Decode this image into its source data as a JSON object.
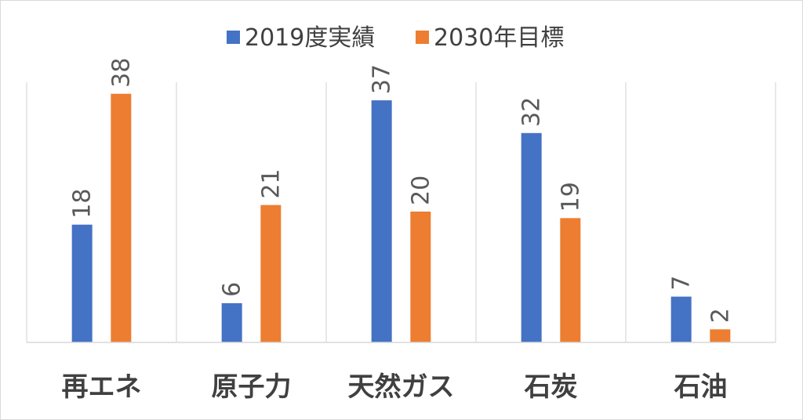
{
  "chart_data": {
    "type": "bar",
    "categories": [
      "再エネ",
      "原子力",
      "天然ガス",
      "石炭",
      "石油"
    ],
    "series": [
      {
        "name": "2019度実績",
        "values": [
          18,
          6,
          37,
          32,
          7
        ],
        "color": "#4472C4"
      },
      {
        "name": "2030年目標",
        "values": [
          38,
          21,
          20,
          19,
          2
        ],
        "color": "#ED7D31"
      }
    ],
    "title": "",
    "xlabel": "",
    "ylabel": "",
    "ylim": [
      0,
      45
    ],
    "data_labels": true,
    "grid": "vertical category separators",
    "legend_position": "top"
  }
}
